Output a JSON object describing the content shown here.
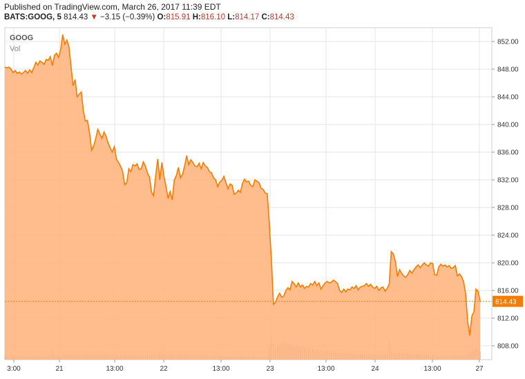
{
  "header": {
    "published": "Published on TradingView.com, March 26, 2017 11:39 EDT",
    "symbol": "BATS:GOOG, 5",
    "last": "814.43",
    "change_arrow": "▼",
    "change": "−3.15 (−0.39%)",
    "open_label": "O:",
    "open": "815.91",
    "high_label": "H:",
    "high": "816.10",
    "low_label": "L:",
    "low": "814.17",
    "close_label": "C:",
    "close": "814.43"
  },
  "legend": {
    "main": "GOOG",
    "vol": "Vol"
  },
  "colors": {
    "line": "#f57c00",
    "fill": "#ffb27a",
    "volume": "#9e9e9e",
    "grid": "#e6e6e6",
    "price_tag": "#f57c00"
  },
  "chart_data": {
    "type": "area",
    "title": "GOOG",
    "ylim": [
      806,
      854
    ],
    "y_ticks": [
      "852.00",
      "848.00",
      "844.00",
      "840.00",
      "836.00",
      "832.00",
      "828.00",
      "824.00",
      "820.00",
      "816.00",
      "812.00",
      "808.00"
    ],
    "x_ticks": [
      "3:00",
      "21",
      "13:00",
      "22",
      "13:00",
      "23",
      "13:00",
      "24",
      "13:00",
      "27"
    ],
    "last_price_label": "814.43",
    "last_price": 814.43,
    "series": [
      {
        "values": [
          848.3,
          848.2,
          848.3,
          848.0,
          847.5,
          847.8,
          847.4,
          847.6,
          847.3,
          847.5,
          847.8,
          847.4,
          847.9,
          847.5,
          848.2,
          849.0,
          848.6,
          849.2,
          849.0,
          848.7,
          849.4,
          849.3,
          849.8,
          848.5,
          850.0,
          850.3,
          849.7,
          850.8,
          853.0,
          851.6,
          852.2,
          851.3,
          848.5,
          845.6,
          846.5,
          844.0,
          844.4,
          844.7,
          842.0,
          840.5,
          840.6,
          838.8,
          836.3,
          836.9,
          838.0,
          839.3,
          838.6,
          838.0,
          838.9,
          838.3,
          837.3,
          836.6,
          836.0,
          836.8,
          835.0,
          834.5,
          834.0,
          833.2,
          831.3,
          831.6,
          833.6,
          833.2,
          834.2,
          834.0,
          834.3,
          833.5,
          833.6,
          834.6,
          834.0,
          833.0,
          832.4,
          830.2,
          829.7,
          832.6,
          835.0,
          832.0,
          834.5,
          832.5,
          831.0,
          829.3,
          830.3,
          829.1,
          832.0,
          832.6,
          833.8,
          832.3,
          832.8,
          834.0,
          835.5,
          834.2,
          834.9,
          834.5,
          834.0,
          833.9,
          834.4,
          833.6,
          834.5,
          834.0,
          833.8,
          833.2,
          833.0,
          832.3,
          832.0,
          831.0,
          831.7,
          831.9,
          832.5,
          831.6,
          830.7,
          831.4,
          831.2,
          829.9,
          830.1,
          830.5,
          830.2,
          831.5,
          832.1,
          831.7,
          831.8,
          831.2,
          831.0,
          832.0,
          831.8,
          831.6,
          830.8,
          830.6,
          830.1,
          830.0,
          825.6,
          820.5,
          814.0,
          814.3,
          815.1,
          815.6,
          815.0,
          815.2,
          816.0,
          816.4,
          816.1,
          817.3,
          817.0,
          816.5,
          817.1,
          816.5,
          816.8,
          816.3,
          816.6,
          816.5,
          817.0,
          816.8,
          817.3,
          816.7,
          817.1,
          816.2,
          816.7,
          817.1,
          817.3,
          817.1,
          817.2,
          817.5,
          817.3,
          817.0,
          816.0,
          815.7,
          816.2,
          815.8,
          816.2,
          816.1,
          816.5,
          816.3,
          816.7,
          816.1,
          816.5,
          816.6,
          816.7,
          817.0,
          816.6,
          816.9,
          816.5,
          816.3,
          816.6,
          816.0,
          816.4,
          816.5,
          815.9,
          816.3,
          816.9,
          821.6,
          821.3,
          820.2,
          818.0,
          819.0,
          818.5,
          818.1,
          817.9,
          818.3,
          818.9,
          818.5,
          819.0,
          819.4,
          819.7,
          819.3,
          819.7,
          820.0,
          819.7,
          819.5,
          820.0,
          819.9,
          818.3,
          818.2,
          819.4,
          819.8,
          819.5,
          819.7,
          819.4,
          819.6,
          819.2,
          819.3,
          819.6,
          818.1,
          818.4,
          818.0,
          817.3,
          815.5,
          811.5,
          809.5,
          812.3,
          812.9,
          816.2,
          815.9,
          814.43
        ]
      }
    ],
    "volume": [
      2.2,
      2.6,
      2.0,
      2.8,
      3.0,
      2.5,
      2.4,
      2.1,
      2.6,
      1.9,
      2.2,
      2.0,
      2.5,
      2.1,
      2.3,
      1.8,
      2.7,
      2.0,
      2.4,
      1.9,
      2.2,
      2.0,
      2.8,
      6.5,
      3.0,
      2.2,
      2.6,
      2.1,
      2.4,
      2.9,
      3.2,
      2.8,
      3.5,
      3.1,
      2.6,
      3.8,
      3.3,
      2.7,
      3.0,
      3.4,
      2.8,
      3.9,
      3.1,
      3.6,
      2.9,
      3.2,
      3.0,
      3.5,
      2.7,
      3.1,
      2.9,
      2.6,
      3.0,
      2.8,
      3.3,
      2.5,
      2.9,
      2.7,
      3.1,
      2.4,
      2.8,
      2.6,
      3.0,
      2.5,
      2.9,
      2.7,
      3.2,
      2.6,
      3.0,
      2.4,
      2.8,
      3.9,
      3.4,
      3.1,
      2.9,
      5.4,
      3.6,
      3.3,
      3.0,
      2.8,
      3.5,
      3.2,
      3.0,
      2.7,
      3.4,
      3.0,
      2.8,
      3.6,
      3.2,
      3.1,
      3.0,
      2.9,
      3.4,
      3.2,
      2.6,
      3.1,
      2.7,
      2.9,
      2.5,
      2.8,
      2.4,
      2.6,
      2.3,
      2.7,
      2.2,
      2.5,
      2.1,
      2.4,
      2.0,
      2.3,
      1.9,
      2.2,
      1.8,
      2.0,
      1.9,
      2.1,
      1.8,
      1.9,
      2.0,
      1.7,
      1.9,
      1.8,
      2.0,
      1.7,
      1.8,
      1.6,
      1.9,
      1.7,
      9.0,
      14.5,
      10.0,
      7.5,
      8.8,
      9.6,
      10.5,
      11.0,
      9.5,
      10.2,
      9.3,
      8.8,
      9.8,
      8.4,
      8.9,
      7.6,
      8.2,
      7.5,
      7.0,
      7.8,
      6.5,
      6.8,
      6.1,
      6.5,
      5.8,
      6.1,
      5.5,
      5.0,
      5.6,
      4.8,
      4.5,
      5.0,
      4.2,
      4.6,
      4.0,
      4.3,
      3.8,
      4.1,
      3.6,
      3.9,
      3.5,
      3.7,
      3.3,
      3.6,
      3.2,
      3.4,
      3.1,
      3.3,
      3.0,
      3.4,
      2.9,
      3.2,
      2.8,
      3.1,
      2.9,
      3.3,
      3.0,
      3.5,
      12.8,
      5.2,
      4.6,
      4.0,
      3.8,
      4.5,
      3.6,
      4.1,
      3.5,
      3.8,
      3.4,
      3.7,
      3.2,
      3.5,
      3.1,
      3.3,
      3.0,
      3.2,
      2.9,
      3.1,
      2.8,
      3.0,
      2.7,
      2.9,
      2.6,
      2.8,
      2.5,
      2.7,
      2.4,
      2.6,
      2.5,
      2.7,
      2.4,
      2.6,
      2.3,
      2.8,
      2.5,
      3.2,
      3.8,
      5.0,
      6.0,
      5.5,
      7.2,
      6.0,
      5.0
    ]
  }
}
